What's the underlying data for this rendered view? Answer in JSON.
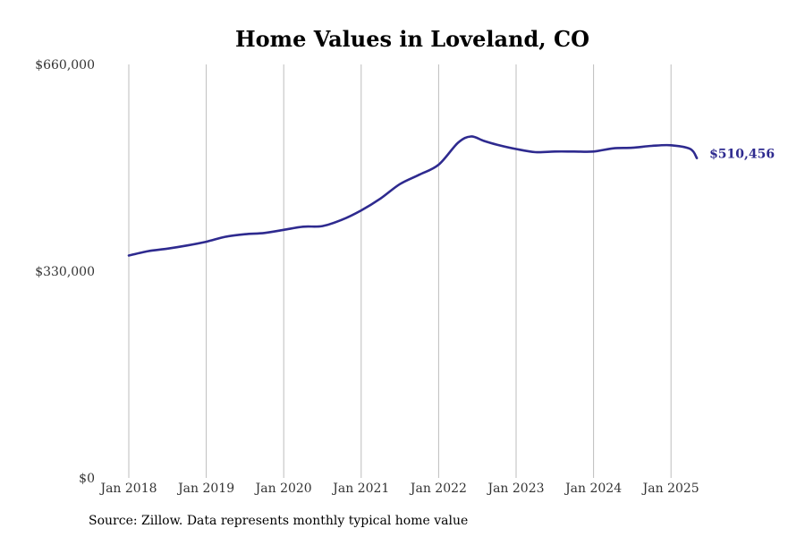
{
  "chart_data": {
    "type": "line",
    "title": "Home Values in Loveland, CO",
    "xlabel": "",
    "ylabel": "",
    "x_ticks": [
      "Jan 2018",
      "Jan 2019",
      "Jan 2020",
      "Jan 2021",
      "Jan 2022",
      "Jan 2023",
      "Jan 2024",
      "Jan 2025"
    ],
    "y_ticks": [
      {
        "value": 0,
        "label": "$0"
      },
      {
        "value": 330000,
        "label": "$330,000"
      },
      {
        "value": 660000,
        "label": "$660,000"
      }
    ],
    "ylim": [
      0,
      660000
    ],
    "xlim": [
      "2017-10",
      "2025-12"
    ],
    "grid": "vertical",
    "series": [
      {
        "color": "#2e2a8f",
        "end_label": "$510,456",
        "points": [
          {
            "x": "2018-01",
            "y": 355000
          },
          {
            "x": "2018-04",
            "y": 362000
          },
          {
            "x": "2018-07",
            "y": 366000
          },
          {
            "x": "2018-10",
            "y": 371000
          },
          {
            "x": "2019-01",
            "y": 377000
          },
          {
            "x": "2019-04",
            "y": 385000
          },
          {
            "x": "2019-07",
            "y": 389000
          },
          {
            "x": "2019-10",
            "y": 391000
          },
          {
            "x": "2020-01",
            "y": 396000
          },
          {
            "x": "2020-04",
            "y": 401000
          },
          {
            "x": "2020-07",
            "y": 402000
          },
          {
            "x": "2020-10",
            "y": 412000
          },
          {
            "x": "2021-01",
            "y": 427000
          },
          {
            "x": "2021-04",
            "y": 446000
          },
          {
            "x": "2021-07",
            "y": 469000
          },
          {
            "x": "2021-10",
            "y": 484000
          },
          {
            "x": "2022-01",
            "y": 500000
          },
          {
            "x": "2022-04",
            "y": 535000
          },
          {
            "x": "2022-06",
            "y": 545000
          },
          {
            "x": "2022-08",
            "y": 538000
          },
          {
            "x": "2022-10",
            "y": 532000
          },
          {
            "x": "2023-01",
            "y": 525000
          },
          {
            "x": "2023-04",
            "y": 520000
          },
          {
            "x": "2023-07",
            "y": 521000
          },
          {
            "x": "2023-10",
            "y": 521000
          },
          {
            "x": "2024-01",
            "y": 521000
          },
          {
            "x": "2024-04",
            "y": 526000
          },
          {
            "x": "2024-07",
            "y": 527000
          },
          {
            "x": "2024-10",
            "y": 530000
          },
          {
            "x": "2025-01",
            "y": 531000
          },
          {
            "x": "2025-04",
            "y": 525000
          },
          {
            "x": "2025-05",
            "y": 510456
          }
        ]
      }
    ]
  },
  "source_note": "Source: Zillow. Data represents monthly typical home value"
}
